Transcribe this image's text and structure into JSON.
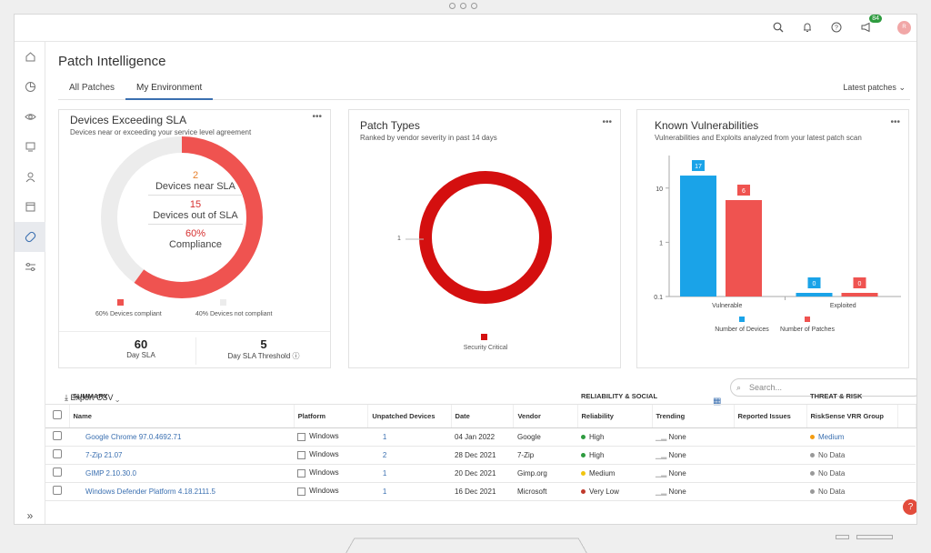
{
  "header": {
    "notification_count": "84",
    "avatar_initials": "R"
  },
  "page": {
    "title": "Patch Intelligence",
    "tabs": [
      "All Patches",
      "My Environment"
    ],
    "filter_label": "Latest patches",
    "expand_label": "»"
  },
  "sla_card": {
    "title": "Devices Exceeding SLA",
    "subtitle": "Devices near or exceeding your service level agreement",
    "near_count": "2",
    "near_label": "Devices near SLA",
    "out_count": "15",
    "out_label": "Devices out of SLA",
    "compliance_pct": "60%",
    "compliance_label": "Compliance",
    "legend_compliant": "60% Devices compliant",
    "legend_not_compliant": "40% Devices not compliant",
    "day_sla_value": "60",
    "day_sla_label": "Day SLA",
    "threshold_value": "5",
    "threshold_label": "Day SLA Threshold",
    "compliant_fraction": 0.6
  },
  "patch_types_card": {
    "title": "Patch Types",
    "subtitle": "Ranked by vendor severity in past 14 days",
    "axis_label": "1",
    "legend": "Security Critical"
  },
  "vuln_card": {
    "title": "Known Vulnerabilities",
    "subtitle": "Vulnerabilities and Exploits analyzed from your latest patch scan"
  },
  "chart_data": {
    "type": "bar",
    "categories": [
      "Vulnerable",
      "Exploited"
    ],
    "series": [
      {
        "name": "Number of Devices",
        "values": [
          17,
          0
        ],
        "color": "#1aa3e8"
      },
      {
        "name": "Number of Patches",
        "values": [
          6,
          0
        ],
        "color": "#ef5350"
      }
    ],
    "y_scale": "log",
    "y_ticks": [
      "10",
      "1",
      "0.1"
    ],
    "legend_position": "bottom"
  },
  "table_toolbar": {
    "export_label": "Export CSV",
    "search_placeholder": "Search..."
  },
  "table": {
    "groups": [
      "SUMMARY",
      "RELIABILITY & SOCIAL",
      "THREAT & RISK"
    ],
    "headers": {
      "name": "Name",
      "platform": "Platform",
      "unpatched": "Unpatched Devices",
      "date": "Date",
      "vendor": "Vendor",
      "reliability": "Reliability",
      "trending": "Trending",
      "reported": "Reported Issues",
      "vrr": "RiskSense VRR Group"
    },
    "rows": [
      {
        "name": "Google Chrome 97.0.4692.71",
        "platform": "Windows",
        "unpatched": "1",
        "date": "04 Jan 2022",
        "vendor": "Google",
        "reliability": "High",
        "rel_color": "#2e9b3f",
        "trending": "None",
        "vrr": "Medium",
        "vrr_color": "#f39c12"
      },
      {
        "name": "7-Zip 21.07",
        "platform": "Windows",
        "unpatched": "2",
        "date": "28 Dec 2021",
        "vendor": "7-Zip",
        "reliability": "High",
        "rel_color": "#2e9b3f",
        "trending": "None",
        "vrr": "No Data",
        "vrr_color": "#999999"
      },
      {
        "name": "GIMP 2.10.30.0",
        "platform": "Windows",
        "unpatched": "1",
        "date": "20 Dec 2021",
        "vendor": "Gimp.org",
        "reliability": "Medium",
        "rel_color": "#f1c40f",
        "trending": "None",
        "vrr": "No Data",
        "vrr_color": "#999999"
      },
      {
        "name": "Windows Defender Platform 4.18.2111.5",
        "platform": "Windows",
        "unpatched": "1",
        "date": "16 Dec 2021",
        "vendor": "Microsoft",
        "reliability": "Very Low",
        "rel_color": "#c0392b",
        "trending": "None",
        "vrr": "No Data",
        "vrr_color": "#999999"
      }
    ]
  }
}
